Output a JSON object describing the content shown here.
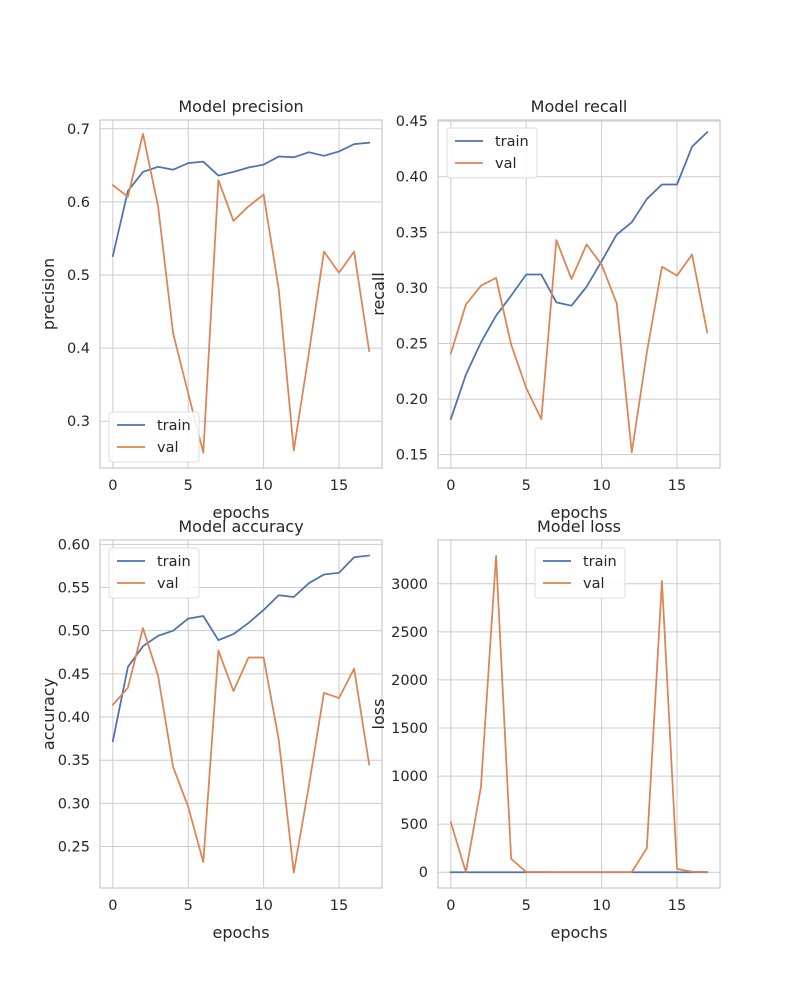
{
  "colors": {
    "train": "#4c72b0",
    "val": "#dd8452",
    "grid": "#cccccc",
    "axis": "#cccccc",
    "text": "#262626"
  },
  "chart_data": [
    {
      "type": "line",
      "title": "Model precision",
      "xlabel": "epochs",
      "ylabel": "precision",
      "xlim": [
        -0.85,
        17.85
      ],
      "ylim": [
        0.236,
        0.712
      ],
      "xticks": [
        0,
        5,
        10,
        15
      ],
      "yticks": [
        0.3,
        0.4,
        0.5,
        0.6,
        0.7
      ],
      "ytick_labels": [
        "0.3",
        "0.4",
        "0.5",
        "0.6",
        "0.7"
      ],
      "grid": true,
      "legend": "lower-left",
      "x": [
        0,
        1,
        2,
        3,
        4,
        5,
        6,
        7,
        8,
        9,
        10,
        11,
        12,
        13,
        14,
        15,
        16,
        17
      ],
      "series": [
        {
          "name": "train",
          "values": [
            0.526,
            0.615,
            0.641,
            0.648,
            0.644,
            0.653,
            0.655,
            0.636,
            0.641,
            0.647,
            0.651,
            0.662,
            0.661,
            0.668,
            0.663,
            0.669,
            0.679,
            0.681
          ]
        },
        {
          "name": "val",
          "values": [
            0.623,
            0.607,
            0.693,
            0.594,
            0.42,
            0.338,
            0.257,
            0.63,
            0.574,
            0.594,
            0.61,
            0.481,
            0.26,
            0.393,
            0.532,
            0.503,
            0.532,
            0.396
          ]
        }
      ]
    },
    {
      "type": "line",
      "title": "Model recall",
      "xlabel": "epochs",
      "ylabel": "recall",
      "xlim": [
        -0.85,
        17.85
      ],
      "ylim": [
        0.138,
        0.451
      ],
      "xticks": [
        0,
        5,
        10,
        15
      ],
      "yticks": [
        0.15,
        0.2,
        0.25,
        0.3,
        0.35,
        0.4,
        0.45
      ],
      "ytick_labels": [
        "0.15",
        "0.20",
        "0.25",
        "0.30",
        "0.35",
        "0.40",
        "0.45"
      ],
      "grid": true,
      "legend": "upper-left",
      "x": [
        0,
        1,
        2,
        3,
        4,
        5,
        6,
        7,
        8,
        9,
        10,
        11,
        12,
        13,
        14,
        15,
        16,
        17
      ],
      "series": [
        {
          "name": "train",
          "values": [
            0.182,
            0.222,
            0.251,
            0.275,
            0.293,
            0.312,
            0.312,
            0.287,
            0.284,
            0.301,
            0.324,
            0.348,
            0.359,
            0.38,
            0.393,
            0.393,
            0.427,
            0.44
          ]
        },
        {
          "name": "val",
          "values": [
            0.241,
            0.285,
            0.302,
            0.309,
            0.249,
            0.21,
            0.182,
            0.343,
            0.308,
            0.339,
            0.321,
            0.286,
            0.152,
            0.242,
            0.319,
            0.311,
            0.33,
            0.26
          ]
        }
      ]
    },
    {
      "type": "line",
      "title": "Model accuracy",
      "xlabel": "epochs",
      "ylabel": "accuracy",
      "xlim": [
        -0.85,
        17.85
      ],
      "ylim": [
        0.202,
        0.605
      ],
      "xticks": [
        0,
        5,
        10,
        15
      ],
      "yticks": [
        0.25,
        0.3,
        0.35,
        0.4,
        0.45,
        0.5,
        0.55,
        0.6
      ],
      "ytick_labels": [
        "0.25",
        "0.30",
        "0.35",
        "0.40",
        "0.45",
        "0.50",
        "0.55",
        "0.60"
      ],
      "grid": true,
      "legend": "upper-left",
      "x": [
        0,
        1,
        2,
        3,
        4,
        5,
        6,
        7,
        8,
        9,
        10,
        11,
        12,
        13,
        14,
        15,
        16,
        17
      ],
      "series": [
        {
          "name": "train",
          "values": [
            0.372,
            0.458,
            0.482,
            0.494,
            0.5,
            0.514,
            0.517,
            0.489,
            0.496,
            0.509,
            0.524,
            0.541,
            0.539,
            0.555,
            0.565,
            0.567,
            0.585,
            0.587
          ]
        },
        {
          "name": "val",
          "values": [
            0.414,
            0.434,
            0.503,
            0.448,
            0.342,
            0.296,
            0.232,
            0.477,
            0.43,
            0.469,
            0.469,
            0.374,
            0.22,
            0.32,
            0.428,
            0.422,
            0.456,
            0.345
          ]
        }
      ]
    },
    {
      "type": "line",
      "title": "Model loss",
      "xlabel": "epochs",
      "ylabel": "loss",
      "xlim": [
        -0.85,
        17.85
      ],
      "ylim": [
        -164,
        3455
      ],
      "xticks": [
        0,
        5,
        10,
        15
      ],
      "yticks": [
        0,
        500,
        1000,
        1500,
        2000,
        2500,
        3000
      ],
      "ytick_labels": [
        "0",
        "500",
        "1000",
        "1500",
        "2000",
        "2500",
        "3000"
      ],
      "grid": true,
      "legend": "upper-center",
      "x": [
        0,
        1,
        2,
        3,
        4,
        5,
        6,
        7,
        8,
        9,
        10,
        11,
        12,
        13,
        14,
        15,
        16,
        17
      ],
      "series": [
        {
          "name": "train",
          "values": [
            0,
            0,
            0,
            0,
            0,
            0,
            0,
            0,
            0,
            0,
            0,
            0,
            0,
            0,
            0,
            0,
            0,
            0
          ]
        },
        {
          "name": "val",
          "values": [
            520,
            0,
            890,
            3290,
            140,
            2,
            3,
            1,
            1,
            1,
            1,
            1,
            1,
            250,
            3030,
            35,
            5,
            2
          ]
        }
      ]
    }
  ]
}
